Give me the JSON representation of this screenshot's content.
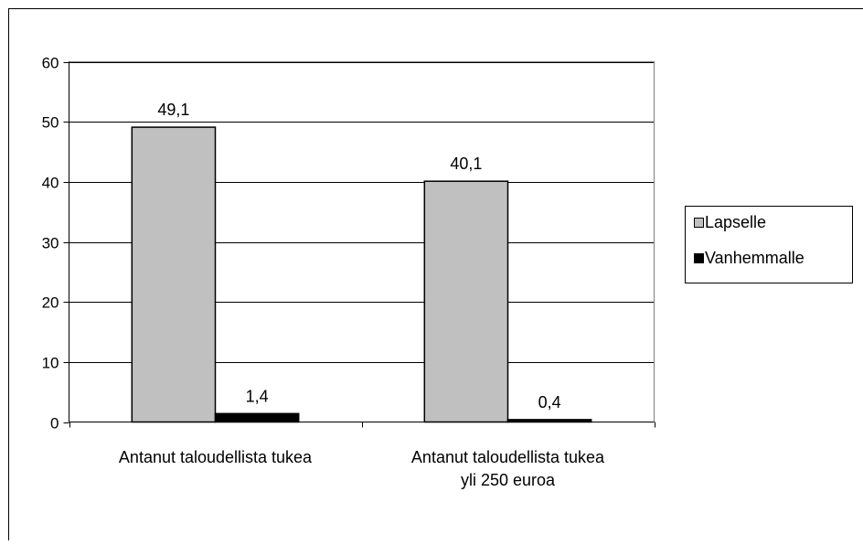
{
  "chart_data": {
    "type": "bar",
    "categories": [
      "Antanut taloudellista tukea",
      "Antanut taloudellista tukea yli 250 euroa"
    ],
    "category_lines": [
      [
        "Antanut taloudellista tukea"
      ],
      [
        "Antanut taloudellista tukea",
        "yli 250 euroa"
      ]
    ],
    "series": [
      {
        "name": "Lapselle",
        "values": [
          49.1,
          40.1
        ],
        "labels": [
          "49,1",
          "40,1"
        ],
        "color": "#c0c0c0"
      },
      {
        "name": "Vanhemmalle",
        "values": [
          1.4,
          0.4
        ],
        "labels": [
          "1,4",
          "0,4"
        ],
        "color": "#000000"
      }
    ],
    "ylim": [
      0,
      60
    ],
    "yticks": [
      0,
      10,
      20,
      30,
      40,
      50,
      60
    ],
    "grid": true,
    "legend_position": "right",
    "title": "",
    "xlabel": "",
    "ylabel": ""
  }
}
